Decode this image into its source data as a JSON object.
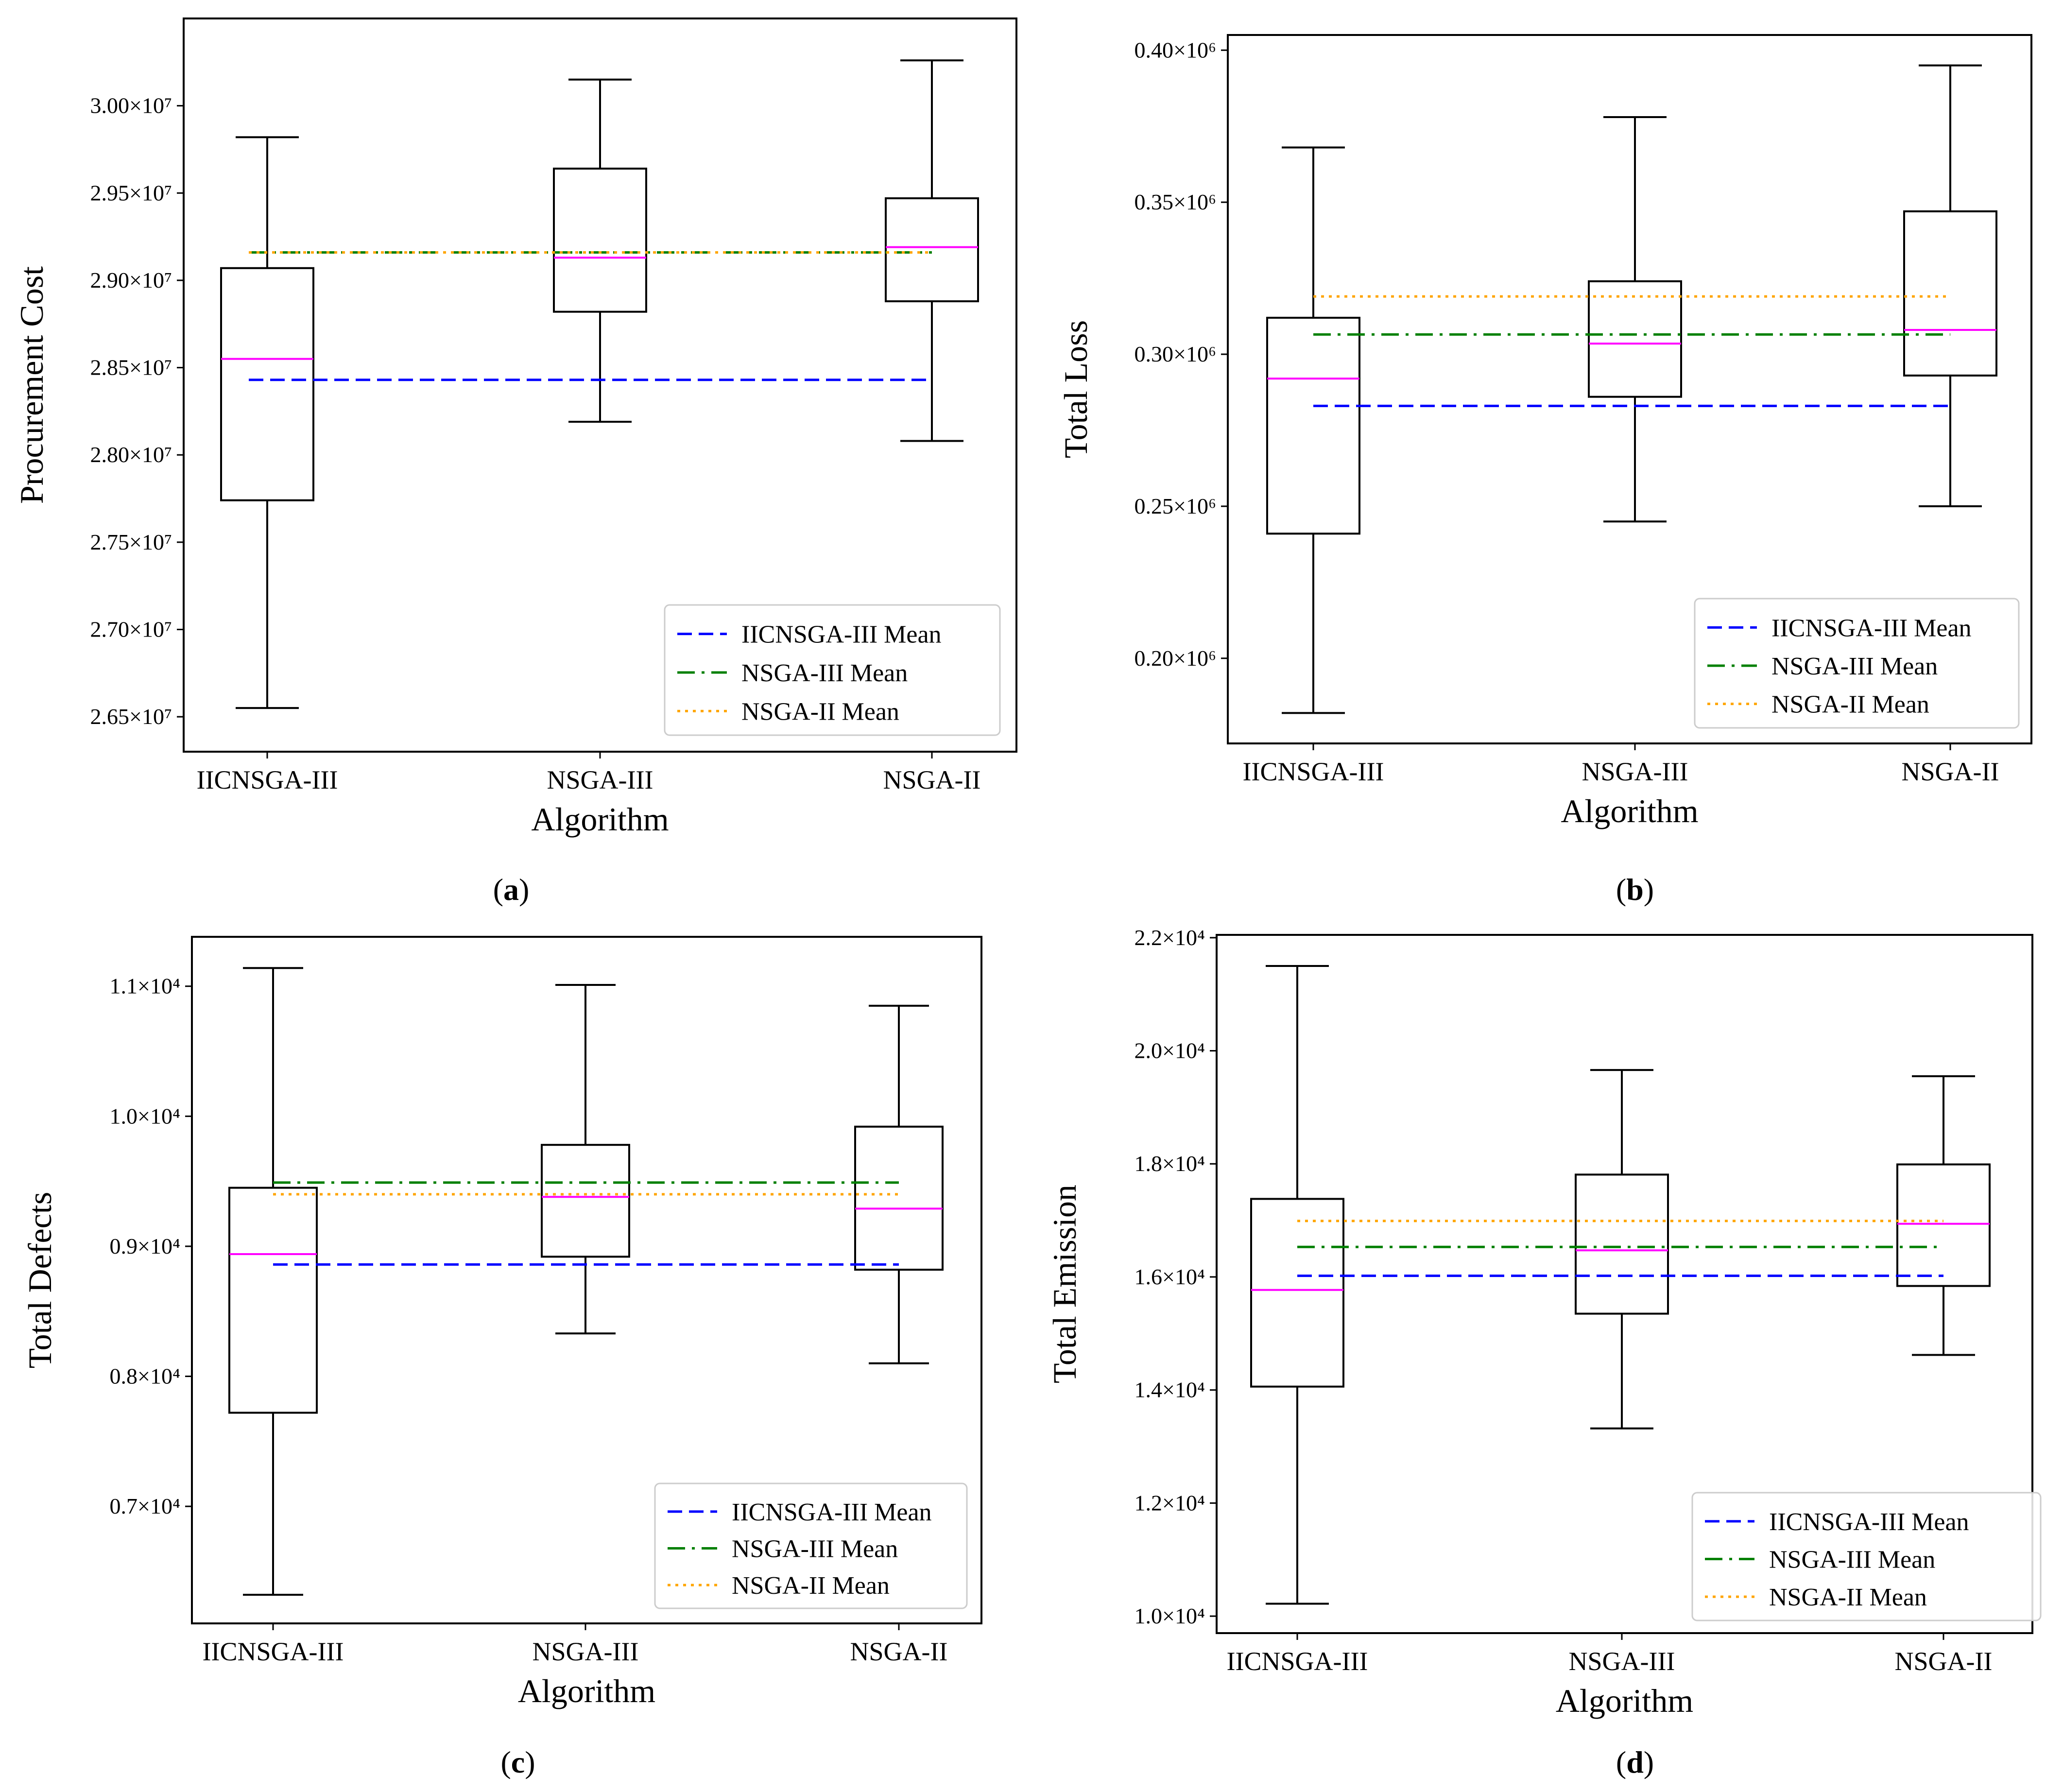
{
  "chart_data": [
    {
      "type": "box",
      "panel_label": "a",
      "ylabel": "Procurement Cost",
      "xlabel": "Algorithm",
      "categories": [
        "IICNSGA-III",
        "NSGA-III",
        "NSGA-II"
      ],
      "ylim": [
        26300000,
        30500000
      ],
      "yticks": [
        26500000,
        27000000,
        27500000,
        28000000,
        28500000,
        29000000,
        29500000,
        30000000
      ],
      "ytick_labels": [
        "2.65×10⁷",
        "2.70×10⁷",
        "2.75×10⁷",
        "2.80×10⁷",
        "2.85×10⁷",
        "2.90×10⁷",
        "2.95×10⁷",
        "3.00×10⁷"
      ],
      "boxes": [
        {
          "name": "IICNSGA-III",
          "whislo": 26550000,
          "q1": 27740000,
          "med": 28550000,
          "q3": 29070000,
          "whishi": 29820000
        },
        {
          "name": "NSGA-III",
          "whislo": 28190000,
          "q1": 28820000,
          "med": 29130000,
          "q3": 29640000,
          "whishi": 30150000
        },
        {
          "name": "NSGA-II",
          "whislo": 28080000,
          "q1": 28880000,
          "med": 29190000,
          "q3": 29470000,
          "whishi": 30260000
        }
      ],
      "mean_lines": [
        {
          "name": "IICNSGA-III Mean",
          "value": 28430000,
          "color": "#0000ff",
          "style": "dashed"
        },
        {
          "name": "NSGA-III Mean",
          "value": 29160000,
          "color": "#008000",
          "style": "dashdot"
        },
        {
          "name": "NSGA-II Mean",
          "value": 29160000,
          "color": "#ffa500",
          "style": "dotted"
        }
      ],
      "median_color": "#ff00ff",
      "legend_position": "lower right"
    },
    {
      "type": "box",
      "panel_label": "b",
      "ylabel": "Total Loss",
      "xlabel": "Algorithm",
      "categories": [
        "IICNSGA-III",
        "NSGA-III",
        "NSGA-II"
      ],
      "ylim": [
        172000,
        405000
      ],
      "yticks": [
        200000,
        250000,
        300000,
        350000,
        400000
      ],
      "ytick_labels": [
        "0.20×10⁶",
        "0.25×10⁶",
        "0.30×10⁶",
        "0.35×10⁶",
        "0.40×10⁶"
      ],
      "boxes": [
        {
          "name": "IICNSGA-III",
          "whislo": 182000,
          "q1": 241000,
          "med": 292000,
          "q3": 312000,
          "whishi": 368000
        },
        {
          "name": "NSGA-III",
          "whislo": 245000,
          "q1": 286000,
          "med": 303500,
          "q3": 324000,
          "whishi": 378000
        },
        {
          "name": "NSGA-II",
          "whislo": 250000,
          "q1": 293000,
          "med": 308000,
          "q3": 347000,
          "whishi": 395000
        }
      ],
      "mean_lines": [
        {
          "name": "IICNSGA-III Mean",
          "value": 283000,
          "color": "#0000ff",
          "style": "dashed"
        },
        {
          "name": "NSGA-III Mean",
          "value": 306500,
          "color": "#008000",
          "style": "dashdot"
        },
        {
          "name": "NSGA-II Mean",
          "value": 319000,
          "color": "#ffa500",
          "style": "dotted"
        }
      ],
      "median_color": "#ff00ff",
      "legend_position": "lower right"
    },
    {
      "type": "box",
      "panel_label": "c",
      "ylabel": "Total Defects",
      "xlabel": "Algorithm",
      "categories": [
        "IICNSGA-III",
        "NSGA-III",
        "NSGA-II"
      ],
      "ylim": [
        6100,
        11380
      ],
      "yticks": [
        7000,
        8000,
        9000,
        10000,
        11000
      ],
      "ytick_labels": [
        "0.7×10⁴",
        "0.8×10⁴",
        "0.9×10⁴",
        "1.0×10⁴",
        "1.1×10⁴"
      ],
      "boxes": [
        {
          "name": "IICNSGA-III",
          "whislo": 6320,
          "q1": 7720,
          "med": 8940,
          "q3": 9450,
          "whishi": 11140
        },
        {
          "name": "NSGA-III",
          "whislo": 8330,
          "q1": 8920,
          "med": 9380,
          "q3": 9780,
          "whishi": 11010
        },
        {
          "name": "NSGA-II",
          "whislo": 8100,
          "q1": 8820,
          "med": 9290,
          "q3": 9920,
          "whishi": 10850
        }
      ],
      "mean_lines": [
        {
          "name": "IICNSGA-III Mean",
          "value": 8860,
          "color": "#0000ff",
          "style": "dashed"
        },
        {
          "name": "NSGA-III Mean",
          "value": 9490,
          "color": "#008000",
          "style": "dashdot"
        },
        {
          "name": "NSGA-II Mean",
          "value": 9400,
          "color": "#ffa500",
          "style": "dotted"
        }
      ],
      "median_color": "#ff00ff",
      "legend_position": "lower right"
    },
    {
      "type": "box",
      "panel_label": "d",
      "ylabel": "Total Emission",
      "xlabel": "Algorithm",
      "categories": [
        "IICNSGA-III",
        "NSGA-III",
        "NSGA-II"
      ],
      "ylim": [
        9700,
        22050
      ],
      "yticks": [
        10000,
        12000,
        14000,
        16000,
        18000,
        20000,
        22000
      ],
      "ytick_labels": [
        "1.0×10⁴",
        "1.2×10⁴",
        "1.4×10⁴",
        "1.6×10⁴",
        "1.8×10⁴",
        "2.0×10⁴",
        "2.2×10⁴"
      ],
      "boxes": [
        {
          "name": "IICNSGA-III",
          "whislo": 10220,
          "q1": 14060,
          "med": 15770,
          "q3": 17380,
          "whishi": 21500
        },
        {
          "name": "NSGA-III",
          "whislo": 13320,
          "q1": 15350,
          "med": 16470,
          "q3": 17810,
          "whishi": 19660
        },
        {
          "name": "NSGA-II",
          "whislo": 14620,
          "q1": 15840,
          "med": 16940,
          "q3": 17990,
          "whishi": 19550
        }
      ],
      "mean_lines": [
        {
          "name": "IICNSGA-III Mean",
          "value": 16020,
          "color": "#0000ff",
          "style": "dashed"
        },
        {
          "name": "NSGA-III Mean",
          "value": 16530,
          "color": "#008000",
          "style": "dashdot"
        },
        {
          "name": "NSGA-II Mean",
          "value": 16990,
          "color": "#ffa500",
          "style": "dotted"
        }
      ],
      "median_color": "#ff00ff",
      "legend_position": "lower right"
    }
  ]
}
